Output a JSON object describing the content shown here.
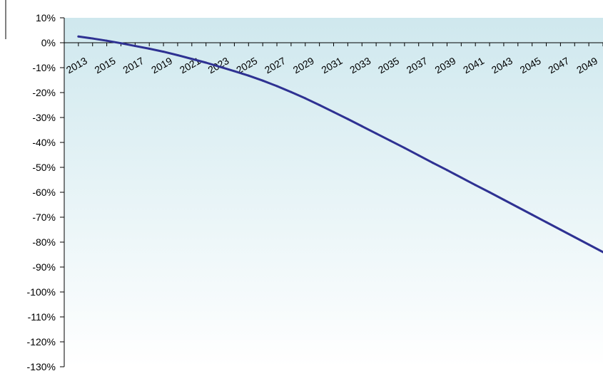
{
  "chart_data": {
    "type": "line",
    "title": "",
    "xlabel": "",
    "ylabel": "",
    "ylim": [
      -130,
      10
    ],
    "y_tick_values": [
      10,
      0,
      -10,
      -20,
      -30,
      -40,
      -50,
      -60,
      -70,
      -80,
      -90,
      -100,
      -110,
      -120,
      -130
    ],
    "y_tick_labels": [
      "10%",
      "0%",
      "-10%",
      "-20%",
      "-30%",
      "-40%",
      "-50%",
      "-60%",
      "-70%",
      "-80%",
      "-90%",
      "-100%",
      "-110%",
      "-120%",
      "-130%"
    ],
    "x_tick_labels": [
      "2013",
      "2015",
      "2017",
      "2019",
      "2021",
      "2023",
      "2025",
      "2027",
      "2029",
      "2031",
      "2033",
      "2035",
      "2037",
      "2039",
      "2041",
      "2043",
      "2045",
      "2047",
      "2049"
    ],
    "xlim": [
      2012,
      2050
    ],
    "grid": false,
    "background_gradient": [
      "#cfe8ee",
      "#ffffff"
    ],
    "series": [
      {
        "color": "#2e3192",
        "x": [
          2013,
          2014,
          2015,
          2016,
          2017,
          2018,
          2019,
          2020,
          2021,
          2022,
          2023,
          2024,
          2025,
          2026,
          2027,
          2028,
          2029,
          2030,
          2031,
          2032,
          2033,
          2034,
          2035,
          2036,
          2037,
          2038,
          2039,
          2040,
          2041,
          2042,
          2043,
          2044,
          2045,
          2046,
          2047,
          2048,
          2049,
          2050
        ],
        "values": [
          2.5,
          1.7,
          0.8,
          -0.2,
          -1.3,
          -2.4,
          -3.6,
          -5.0,
          -6.5,
          -8.0,
          -9.7,
          -11.4,
          -13.2,
          -15.2,
          -17.4,
          -19.8,
          -22.3,
          -25.0,
          -27.8,
          -30.6,
          -33.5,
          -36.4,
          -39.3,
          -42.2,
          -45.2,
          -48.2,
          -51.1,
          -54.1,
          -57.1,
          -60.0,
          -63.0,
          -66.0,
          -69.0,
          -72.0,
          -75.0,
          -78.0,
          -81.0,
          -84.0
        ]
      }
    ]
  }
}
